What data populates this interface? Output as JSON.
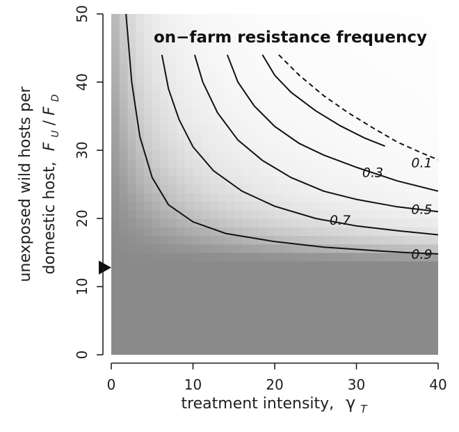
{
  "chart_data": {
    "type": "heatmap",
    "title": "on−farm resistance frequency",
    "xlabel": "treatment intensity,",
    "xlabel_symbol": "γ",
    "xlabel_subscript": "T",
    "ylabel_line1": "unexposed wild hosts per",
    "ylabel_line2": "domestic host,",
    "ylabel_symbol_num": "F",
    "ylabel_sub_num": "U",
    "ylabel_slash": "/",
    "ylabel_symbol_den": "F",
    "ylabel_sub_den": "D",
    "xlim": [
      0,
      40
    ],
    "ylim": [
      0,
      50
    ],
    "xticks": [
      0,
      10,
      20,
      30,
      40
    ],
    "xtick_labels": [
      "0",
      "10",
      "20",
      "30",
      "40"
    ],
    "yticks": [
      0,
      10,
      20,
      30,
      40,
      50
    ],
    "ytick_labels": [
      "0",
      "10",
      "20",
      "30",
      "40",
      "50"
    ],
    "colorscale": {
      "low": "#ffffff",
      "high": "#8a8a8a"
    },
    "marker": {
      "shape": "triangle-right",
      "y": 12.8
    },
    "contours": [
      {
        "level": 0.9,
        "label": "0.9",
        "style": "solid",
        "points": [
          [
            1.8,
            50
          ],
          [
            2.5,
            40
          ],
          [
            3.5,
            32
          ],
          [
            5,
            26
          ],
          [
            7,
            22
          ],
          [
            10,
            19.5
          ],
          [
            14,
            17.8
          ],
          [
            20,
            16.6
          ],
          [
            26,
            15.8
          ],
          [
            32,
            15.3
          ],
          [
            36,
            15.0
          ],
          [
            40,
            14.8
          ]
        ],
        "label_at": [
          38.0,
          14.8
        ]
      },
      {
        "level": 0.7,
        "label": "0.7",
        "style": "solid",
        "points": [
          [
            6.2,
            44
          ],
          [
            7,
            39
          ],
          [
            8.3,
            34.5
          ],
          [
            10,
            30.5
          ],
          [
            12.5,
            27
          ],
          [
            16,
            24
          ],
          [
            20,
            21.8
          ],
          [
            25,
            20.0
          ],
          [
            30,
            18.9
          ],
          [
            35,
            18.2
          ],
          [
            40,
            17.6
          ]
        ],
        "label_at": [
          28.0,
          19.8
        ]
      },
      {
        "level": 0.5,
        "label": "0.5",
        "style": "solid",
        "points": [
          [
            10.2,
            44
          ],
          [
            11.2,
            40
          ],
          [
            13,
            35.5
          ],
          [
            15.5,
            31.5
          ],
          [
            18.5,
            28.5
          ],
          [
            22,
            26
          ],
          [
            26,
            24
          ],
          [
            30,
            22.8
          ],
          [
            35,
            21.7
          ],
          [
            40,
            21.0
          ]
        ],
        "label_at": [
          38.0,
          21.4
        ]
      },
      {
        "level": 0.3,
        "label": "0.3",
        "style": "solid",
        "points": [
          [
            14.2,
            44
          ],
          [
            15.5,
            40
          ],
          [
            17.5,
            36.5
          ],
          [
            20,
            33.5
          ],
          [
            23,
            31
          ],
          [
            26,
            29.3
          ],
          [
            30,
            27.5
          ],
          [
            35,
            25.5
          ],
          [
            40,
            24.0
          ]
        ],
        "label_at": [
          32.0,
          26.8
        ]
      },
      {
        "level": 0.1,
        "label": "0.1",
        "style": "solid",
        "points": [
          [
            18.5,
            44
          ],
          [
            20,
            41
          ],
          [
            22,
            38.5
          ],
          [
            25,
            35.8
          ],
          [
            28,
            33.6
          ],
          [
            31,
            31.8
          ],
          [
            33.5,
            30.6
          ]
        ],
        "label_at": [
          38.0,
          28.2
        ]
      },
      {
        "level": 0.05,
        "label": "",
        "style": "dashed",
        "points": [
          [
            20.5,
            44
          ],
          [
            23,
            41
          ],
          [
            26,
            38
          ],
          [
            29,
            35.5
          ],
          [
            32,
            33.3
          ],
          [
            35,
            31.2
          ],
          [
            38,
            29.6
          ],
          [
            40,
            28.6
          ]
        ],
        "label_at": null
      }
    ]
  }
}
